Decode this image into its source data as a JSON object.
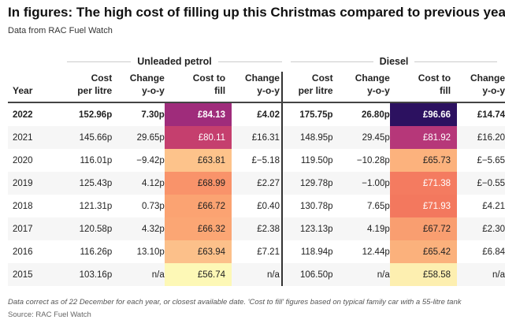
{
  "title": "In figures: The high cost of filling up this Christmas compared to previous years",
  "subtitle": "Data from RAC Fuel Watch",
  "chart_data": {
    "type": "table",
    "groups": [
      "Unleaded petrol",
      "Diesel"
    ],
    "columns": [
      "Year",
      "Cost per litre",
      "Change y-o-y",
      "Cost to fill",
      "Change y-o-y",
      "Cost per litre",
      "Change y-o-y",
      "Cost to fill",
      "Change y-o-y"
    ],
    "rows": [
      {
        "year": "2022",
        "p_cost": "152.96p",
        "p_chg": "7.30p",
        "p_fill": "£84.13",
        "p_fchg": "£4.02",
        "d_cost": "175.75p",
        "d_chg": "26.80p",
        "d_fill": "£96.66",
        "d_fchg": "£14.74",
        "p_color": "#9f2c7b",
        "d_color": "#2c1160",
        "p_dark": true,
        "d_dark": true
      },
      {
        "year": "2021",
        "p_cost": "145.66p",
        "p_chg": "29.65p",
        "p_fill": "£80.11",
        "p_fchg": "£16.31",
        "d_cost": "148.95p",
        "d_chg": "29.45p",
        "d_fill": "£81.92",
        "d_fchg": "£16.20",
        "p_color": "#c53f6e",
        "d_color": "#b63779",
        "p_dark": true,
        "d_dark": true
      },
      {
        "year": "2020",
        "p_cost": "116.01p",
        "p_chg": "−9.42p",
        "p_fill": "£63.81",
        "p_fchg": "£−5.18",
        "d_cost": "119.50p",
        "d_chg": "−10.28p",
        "d_fill": "£65.73",
        "d_fchg": "£−5.65",
        "p_color": "#fdc38b",
        "d_color": "#fcb27d",
        "p_dark": false,
        "d_dark": false
      },
      {
        "year": "2019",
        "p_cost": "125.43p",
        "p_chg": "4.12p",
        "p_fill": "£68.99",
        "p_fchg": "£2.27",
        "d_cost": "129.78p",
        "d_chg": "−1.00p",
        "d_fill": "£71.38",
        "d_fchg": "£−0.55",
        "p_color": "#f9936a",
        "d_color": "#f47b60",
        "p_dark": false,
        "d_dark": true
      },
      {
        "year": "2018",
        "p_cost": "121.31p",
        "p_chg": "0.73p",
        "p_fill": "£66.72",
        "p_fchg": "£0.40",
        "d_cost": "130.78p",
        "d_chg": "7.65p",
        "d_fill": "£71.93",
        "d_fchg": "£4.21",
        "p_color": "#fba372",
        "d_color": "#f3785e",
        "p_dark": false,
        "d_dark": true
      },
      {
        "year": "2017",
        "p_cost": "120.58p",
        "p_chg": "4.32p",
        "p_fill": "£66.32",
        "p_fchg": "£2.38",
        "d_cost": "123.13p",
        "d_chg": "4.19p",
        "d_fill": "£67.72",
        "d_fchg": "£2.30",
        "p_color": "#fba674",
        "d_color": "#f99e70",
        "p_dark": false,
        "d_dark": false
      },
      {
        "year": "2016",
        "p_cost": "116.26p",
        "p_chg": "13.10p",
        "p_fill": "£63.94",
        "p_fchg": "£7.21",
        "d_cost": "118.94p",
        "d_chg": "12.44p",
        "d_fill": "£65.42",
        "d_fchg": "£6.84",
        "p_color": "#fcc08a",
        "d_color": "#fbb17c",
        "p_dark": false,
        "d_dark": false
      },
      {
        "year": "2015",
        "p_cost": "103.16p",
        "p_chg": "n/a",
        "p_fill": "£56.74",
        "p_fchg": "n/a",
        "d_cost": "106.50p",
        "d_chg": "n/a",
        "d_fill": "£58.58",
        "d_fchg": "n/a",
        "p_color": "#fdf8b6",
        "d_color": "#fdefb0",
        "p_dark": false,
        "d_dark": false
      }
    ]
  },
  "footnote": "Data correct as of 22 December for each year, or closest available date. 'Cost to fill' figures based on typical family car with a 55-litre tank",
  "source": "Source: RAC Fuel Watch"
}
